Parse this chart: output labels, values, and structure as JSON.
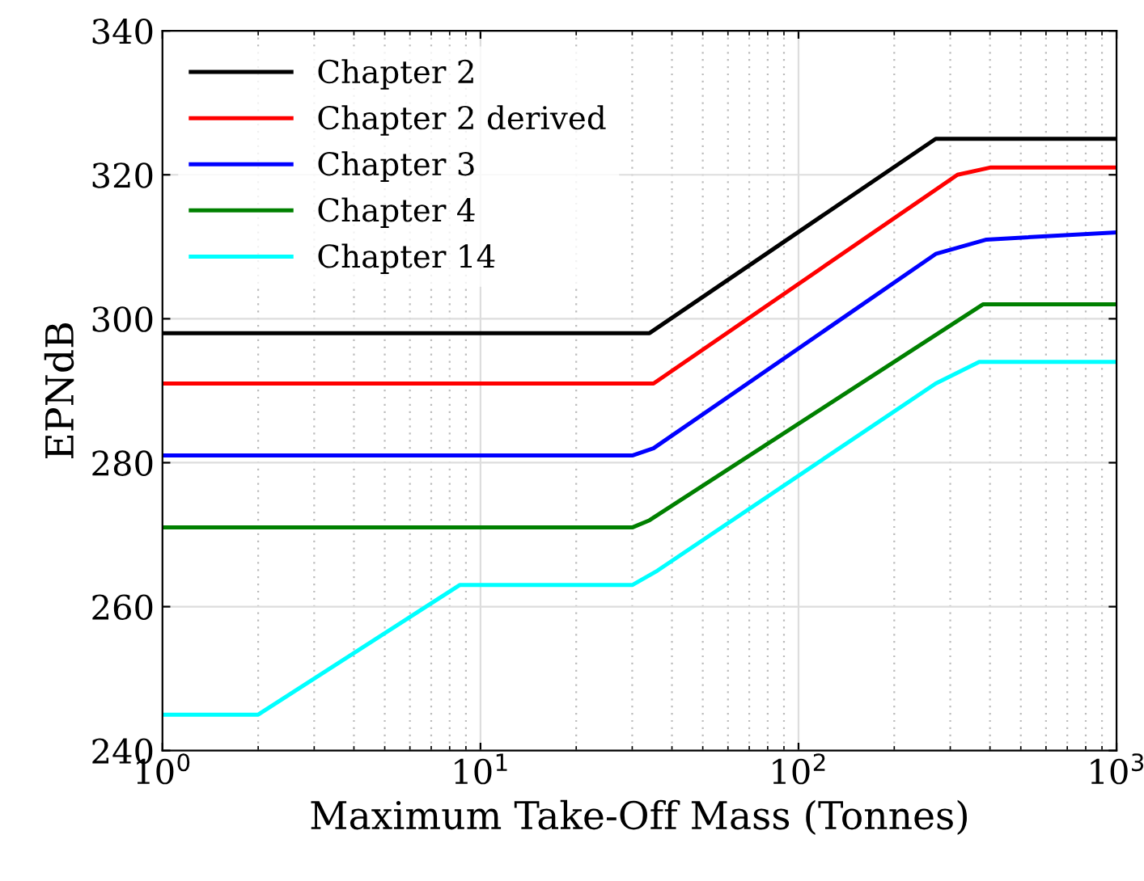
{
  "chart_data": {
    "type": "line",
    "xlabel": "Maximum Take-Off Mass (Tonnes)",
    "ylabel": "EPNdB",
    "log": "x",
    "grid": true,
    "legend": "top left",
    "line_style": "solid",
    "marker": "none",
    "xlim": [
      1,
      1000
    ],
    "ylim": [
      240,
      340
    ],
    "xticks": [
      {
        "value": 1,
        "label": "10$^{0}$"
      },
      {
        "value": 10,
        "label": "10$^{1}$"
      },
      {
        "value": 100,
        "label": "10$^{2}$"
      },
      {
        "value": 1000,
        "label": "10$^{3}$"
      }
    ],
    "yticks": [
      240,
      260,
      280,
      300,
      320,
      340
    ],
    "series": [
      {
        "name": "Chapter 2",
        "color": "#000000",
        "x": [
          1,
          34,
          270,
          1000
        ],
        "values": [
          298,
          298,
          325,
          325
        ]
      },
      {
        "name": "Chapter 2 derived",
        "color": "#ff0000",
        "x": [
          1,
          35,
          316,
          400,
          1000
        ],
        "values": [
          291,
          291,
          320,
          321,
          321
        ]
      },
      {
        "name": "Chapter 3",
        "color": "#0000ff",
        "x": [
          1,
          30,
          35,
          270,
          390,
          1000
        ],
        "values": [
          281,
          281,
          282,
          309,
          311,
          312
        ]
      },
      {
        "name": "Chapter 4",
        "color": "#008000",
        "x": [
          1,
          30,
          34,
          380,
          1000
        ],
        "values": [
          271,
          271,
          272,
          302,
          302
        ]
      },
      {
        "name": "Chapter 14",
        "color": "#00ffff",
        "x": [
          1,
          2,
          8.6,
          30,
          36,
          270,
          370,
          1000
        ],
        "values": [
          245,
          245,
          263,
          263,
          265,
          291,
          294,
          294
        ]
      }
    ]
  }
}
